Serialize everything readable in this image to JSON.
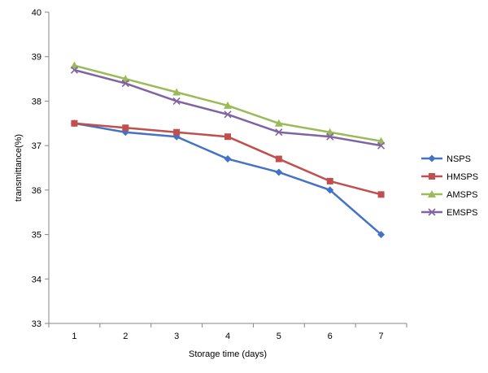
{
  "chart_data": {
    "type": "line",
    "title": "",
    "xlabel": "Storage time (days)",
    "ylabel": "transmittance(%)",
    "categories": [
      "1",
      "2",
      "3",
      "4",
      "5",
      "6",
      "7"
    ],
    "ylim": [
      33,
      40
    ],
    "yticks": [
      "33",
      "34",
      "35",
      "36",
      "37",
      "38",
      "39",
      "40"
    ],
    "grid": false,
    "legend_position": "right",
    "series": [
      {
        "name": "NSPS",
        "color": "#4472C4",
        "marker": "diamond",
        "values": [
          37.5,
          37.3,
          37.2,
          36.7,
          36.4,
          36.0,
          35.0
        ]
      },
      {
        "name": "HMSPS",
        "color": "#C0504D",
        "marker": "square",
        "values": [
          37.5,
          37.4,
          37.3,
          37.2,
          36.7,
          36.2,
          35.9
        ]
      },
      {
        "name": "AMSPS",
        "color": "#9BBB59",
        "marker": "triangle",
        "values": [
          38.8,
          38.5,
          38.2,
          37.9,
          37.5,
          37.3,
          37.1
        ]
      },
      {
        "name": "EMSPS",
        "color": "#8064A2",
        "marker": "x",
        "values": [
          38.7,
          38.4,
          38.0,
          37.7,
          37.3,
          37.2,
          37.0
        ]
      }
    ]
  }
}
